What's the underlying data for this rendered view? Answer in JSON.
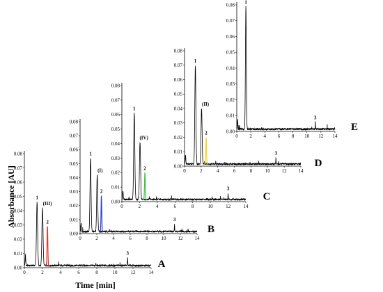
{
  "figure": {
    "ylabel": "Absorbance [AU]",
    "xlabel": "Time [min]"
  },
  "chart_data": [
    {
      "type": "line",
      "panel_label": "A",
      "xlim": [
        0,
        14
      ],
      "ylim": [
        0,
        0.08
      ],
      "xticks": [
        "0",
        "2",
        "4",
        "6",
        "8",
        "10",
        "12",
        "14"
      ],
      "yticks": [
        "0.00",
        "0.01",
        "0.02",
        "0.03",
        "0.04",
        "0.05",
        "0.06",
        "0.07",
        "0.08"
      ],
      "peaks": [
        {
          "label": "1",
          "x": 1.4,
          "y": 0.046,
          "color": "#000000"
        },
        {
          "label": "(III)",
          "x": 2.0,
          "y": 0.042,
          "color": "#000000"
        },
        {
          "label": "2",
          "x": 2.55,
          "y": 0.029,
          "color": "#e8312a"
        },
        {
          "label": "3",
          "x": 11.4,
          "y": 0.007,
          "color": "#000000"
        }
      ]
    },
    {
      "type": "line",
      "panel_label": "B",
      "xlim": [
        0,
        14
      ],
      "ylim": [
        0,
        0.08
      ],
      "xticks": [
        "0",
        "2",
        "4",
        "6",
        "8",
        "10",
        "12",
        "14"
      ],
      "yticks": [
        "0.00",
        "0.01",
        "0.02",
        "0.03",
        "0.04",
        "0.05",
        "0.06",
        "0.07",
        "0.08"
      ],
      "peaks": [
        {
          "label": "1",
          "x": 1.25,
          "y": 0.054,
          "color": "#000000"
        },
        {
          "label": "(I)",
          "x": 2.05,
          "y": 0.042,
          "color": "#000000"
        },
        {
          "label": "2",
          "x": 2.55,
          "y": 0.027,
          "color": "#2b3fd6"
        },
        {
          "label": "3",
          "x": 11.3,
          "y": 0.007,
          "color": "#000000"
        }
      ]
    },
    {
      "type": "line",
      "panel_label": "C",
      "xlim": [
        0,
        14
      ],
      "ylim": [
        0,
        0.08
      ],
      "xticks": [
        "0",
        "2",
        "4",
        "6",
        "8",
        "10",
        "12",
        "14"
      ],
      "yticks": [
        "0.00",
        "0.01",
        "0.02",
        "0.03",
        "0.04",
        "0.05",
        "0.06",
        "0.07",
        "0.08"
      ],
      "peaks": [
        {
          "label": "1",
          "x": 1.4,
          "y": 0.061,
          "color": "#000000"
        },
        {
          "label": "(IV)",
          "x": 2.05,
          "y": 0.041,
          "color": "#000000"
        },
        {
          "label": "2",
          "x": 2.6,
          "y": 0.02,
          "color": "#3ec43e"
        },
        {
          "label": "3",
          "x": 12.0,
          "y": 0.006,
          "color": "#000000"
        }
      ]
    },
    {
      "type": "line",
      "panel_label": "D",
      "xlim": [
        0,
        14
      ],
      "ylim": [
        0,
        0.08
      ],
      "xticks": [
        "0",
        "2",
        "4",
        "6",
        "8",
        "10",
        "12",
        "14"
      ],
      "yticks": [
        "0.00",
        "0.01",
        "0.02",
        "0.03",
        "0.04",
        "0.05",
        "0.06",
        "0.07",
        "0.08"
      ],
      "peaks": [
        {
          "label": "1",
          "x": 1.3,
          "y": 0.07,
          "color": "#000000"
        },
        {
          "label": "(II)",
          "x": 2.05,
          "y": 0.04,
          "color": "#000000"
        },
        {
          "label": "2",
          "x": 2.6,
          "y": 0.02,
          "color": "#f0d81a"
        },
        {
          "label": "3",
          "x": 11.0,
          "y": 0.006,
          "color": "#000000"
        }
      ]
    },
    {
      "type": "line",
      "panel_label": "E",
      "xlim": [
        0,
        14
      ],
      "ylim": [
        0,
        0.08
      ],
      "xticks": [
        "0",
        "2",
        "4",
        "6",
        "8",
        "10",
        "12",
        "14"
      ],
      "yticks": [
        "0.00",
        "0.01",
        "0.02",
        "0.03",
        "0.04",
        "0.05",
        "0.06",
        "0.07",
        "0.08"
      ],
      "peaks": [
        {
          "label": "1",
          "x": 1.3,
          "y": 0.079,
          "color": "#000000"
        },
        {
          "label": "3",
          "x": 11.2,
          "y": 0.006,
          "color": "#000000"
        }
      ]
    }
  ]
}
